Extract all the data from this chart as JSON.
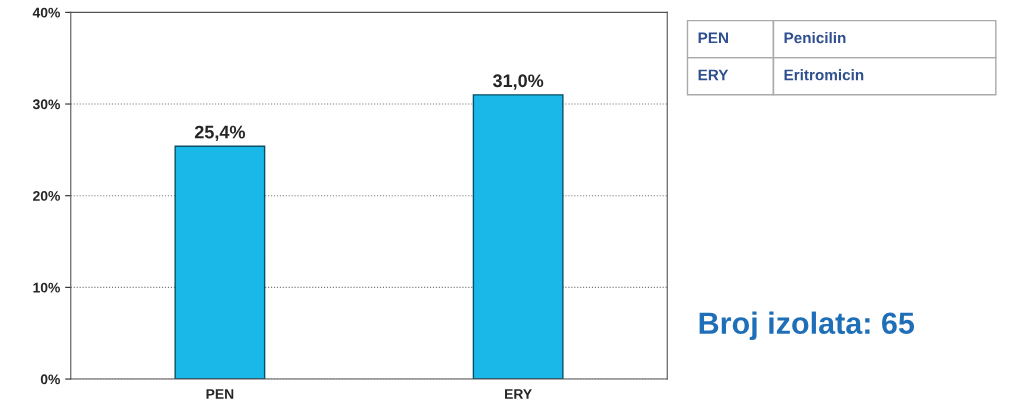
{
  "chart_data": {
    "type": "bar",
    "categories": [
      "PEN",
      "ERY"
    ],
    "values": [
      25.4,
      31.0
    ],
    "value_labels": [
      "25,4%",
      "31,0%"
    ],
    "color": "#1ab8e8",
    "ylim": [
      0,
      40
    ],
    "yticks": [
      {
        "value": 0,
        "label": "0%"
      },
      {
        "value": 10,
        "label": "10%"
      },
      {
        "value": 20,
        "label": "20%"
      },
      {
        "value": 30,
        "label": "30%"
      },
      {
        "value": 40,
        "label": "40%"
      }
    ],
    "grid": "y",
    "annotations": [
      "PEN",
      "Penicilin",
      "ERY",
      "Eritromicin",
      "Broj izolata: 65"
    ]
  }
}
